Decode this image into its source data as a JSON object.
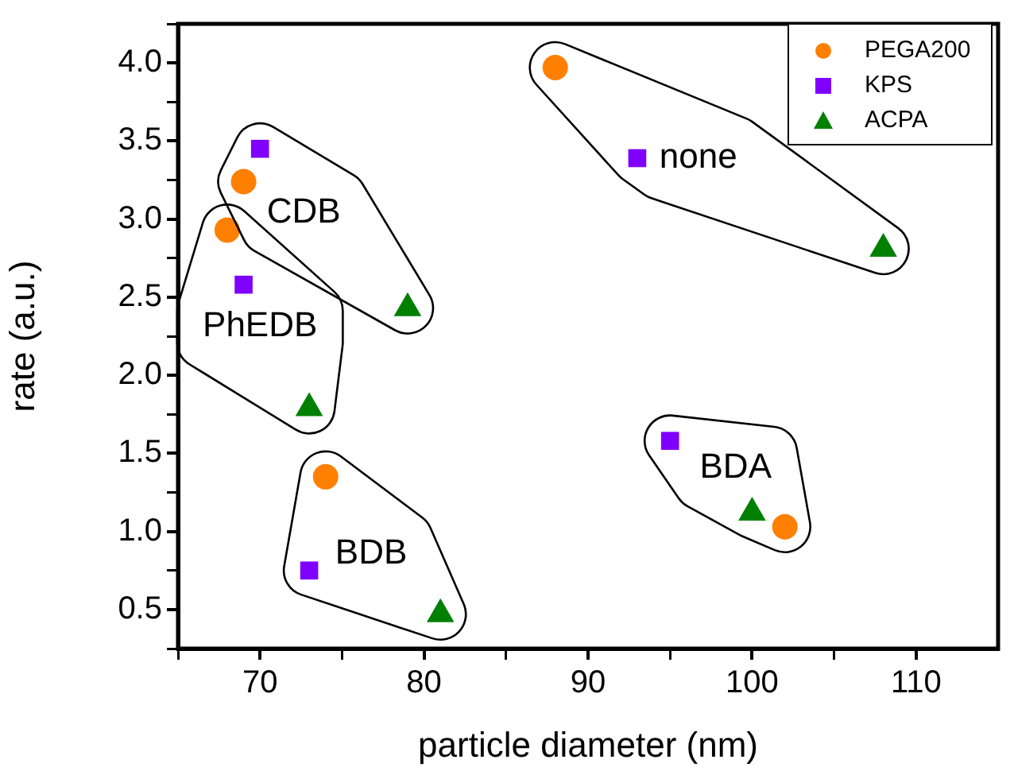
{
  "chart_data": {
    "type": "scatter",
    "xlabel": "particle diameter (nm)",
    "ylabel": "rate (a.u.)",
    "xlim": [
      65,
      115
    ],
    "xticks": [
      {
        "value": 65,
        "label": null
      },
      70,
      {
        "value": 75,
        "label": null
      },
      80,
      {
        "value": 85,
        "label": null
      },
      90,
      {
        "value": 95,
        "label": null
      },
      100,
      {
        "value": 105,
        "label": null
      },
      110
    ],
    "ylim": [
      0.25,
      4.25
    ],
    "yticks": [
      {
        "value": 0.25,
        "label": null
      },
      {
        "value": 0.5,
        "label": "0.5"
      },
      {
        "value": 0.75,
        "label": null
      },
      {
        "value": 1,
        "label": "1.0"
      },
      {
        "value": 1.25,
        "label": null
      },
      {
        "value": 1.5,
        "label": "1.5"
      },
      {
        "value": 1.75,
        "label": null
      },
      {
        "value": 2,
        "label": "2.0"
      },
      {
        "value": 2.25,
        "label": null
      },
      {
        "value": 2.5,
        "label": "2.5"
      },
      {
        "value": 2.75,
        "label": null
      },
      {
        "value": 3,
        "label": "3.0"
      },
      {
        "value": 3.25,
        "label": null
      },
      {
        "value": 3.5,
        "label": "3.5"
      },
      {
        "value": 3.75,
        "label": null
      },
      {
        "value": 4,
        "label": "4.0"
      },
      {
        "value": 4.25,
        "label": null
      }
    ],
    "grid": false,
    "legend": "top right",
    "series": [
      {
        "name": "PEGA200",
        "color": "#ff8000",
        "marker": "circle",
        "x": [
          68,
          69,
          74,
          88,
          102
        ],
        "values": [
          2.93,
          3.24,
          1.35,
          3.97,
          1.03
        ]
      },
      {
        "name": "KPS",
        "color": "#8000ff",
        "marker": "square",
        "x": [
          69,
          70,
          73,
          93,
          95
        ],
        "values": [
          2.58,
          3.45,
          0.75,
          3.39,
          1.58
        ]
      },
      {
        "name": "ACPA",
        "color": "#008000",
        "marker": "triangle",
        "x": [
          73,
          79,
          81,
          108,
          100
        ],
        "values": [
          1.79,
          2.43,
          0.47,
          2.81,
          1.12
        ]
      }
    ],
    "annotations": [
      "PhEDB",
      "CDB",
      "BDB",
      "none",
      "BDA"
    ]
  }
}
